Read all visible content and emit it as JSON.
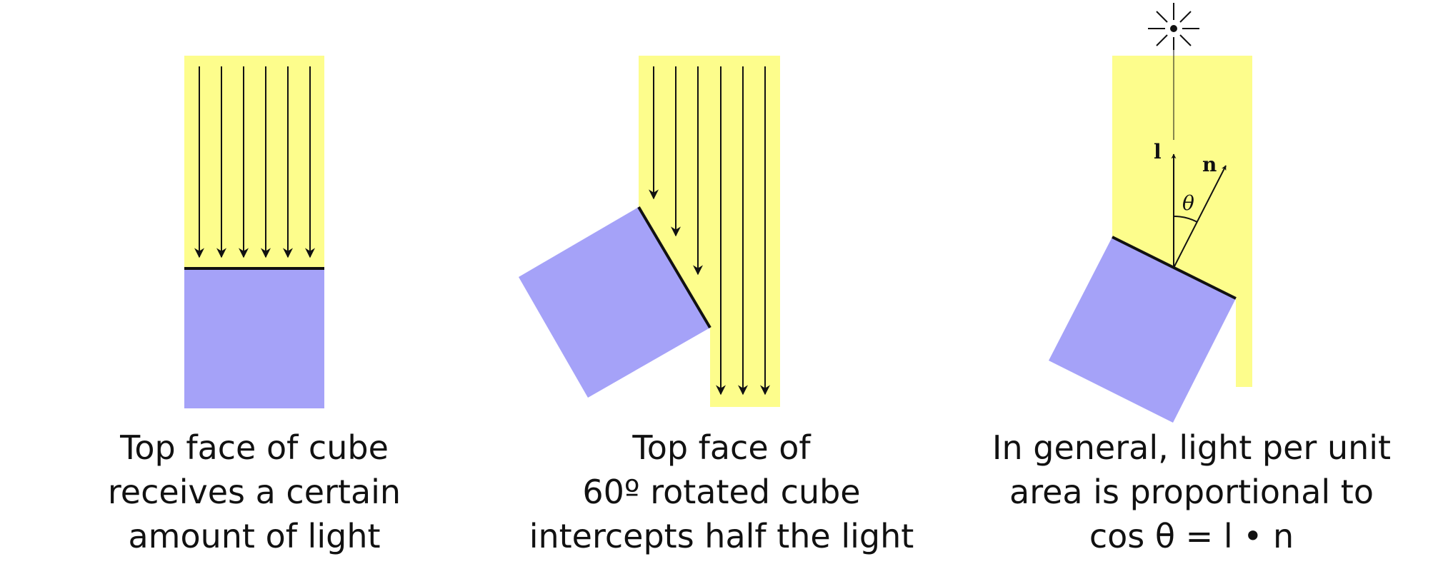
{
  "colors": {
    "light": "#fdfd8c",
    "cube": "#a5a2f8",
    "stroke": "#111111",
    "background": "#ffffff"
  },
  "panels": [
    {
      "id": "flat-cube",
      "rotation_deg": 0,
      "caption_lines": [
        "Top face of cube",
        "receives a certain",
        "amount of light"
      ]
    },
    {
      "id": "rotated-cube",
      "rotation_deg": 60,
      "caption_lines": [
        "Top face of",
        "60º rotated cube",
        "intercepts half the light"
      ]
    },
    {
      "id": "general-cube",
      "caption_lines": [
        "In general, light per unit",
        "area is proportional to",
        "cos θ = l • n"
      ],
      "labels": {
        "light_vector": "l",
        "normal_vector": "n",
        "angle": "θ"
      },
      "icons": [
        "light-source-icon"
      ]
    }
  ]
}
